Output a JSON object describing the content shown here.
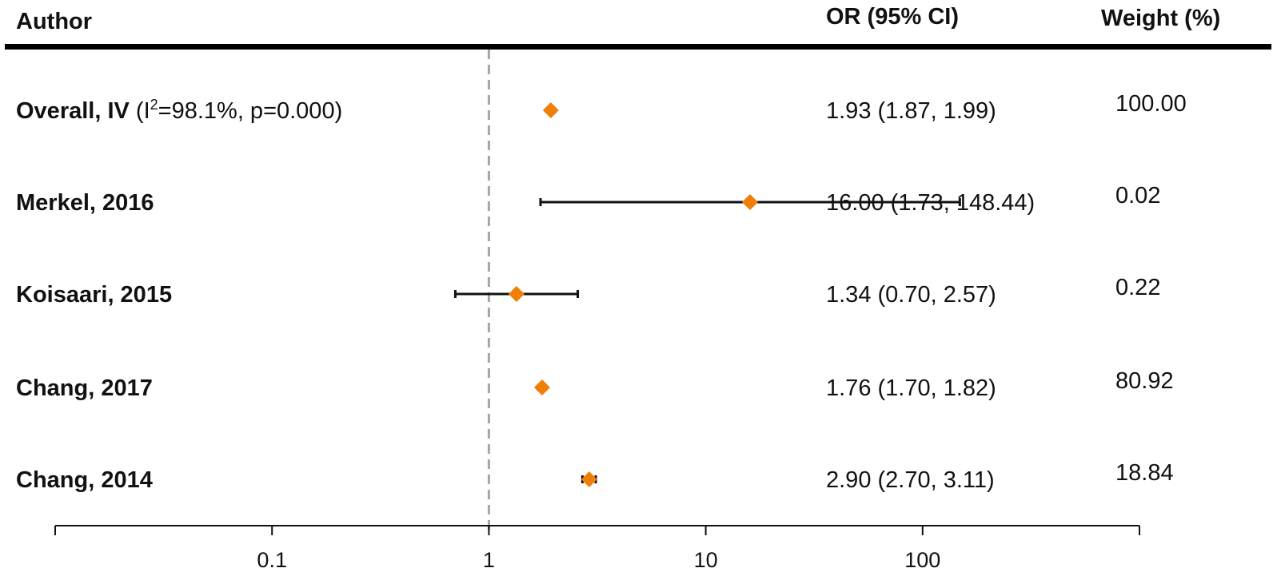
{
  "chart_data": {
    "type": "forest",
    "x_scale": "log10",
    "xlim": [
      0.01,
      1000
    ],
    "reference_line": 1,
    "x_ticks": [
      0.01,
      0.1,
      1,
      10,
      100,
      1000
    ],
    "x_tick_labels": [
      "",
      "0.1",
      "1",
      "10",
      "100",
      ""
    ],
    "columns": {
      "author": "Author",
      "or": "OR (95% CI)",
      "weight": "Weight (%)"
    },
    "marker_color": "#f07f09",
    "rows": [
      {
        "label_bold": "Overall, IV",
        "label_plain_pre": " (I",
        "label_sup": "2",
        "label_plain_post": "=98.1%, p=0.000)",
        "or": 1.93,
        "ci_low": 1.87,
        "ci_high": 1.99,
        "or_text": "1.93 (1.87, 1.99)",
        "weight": "100.00",
        "show_ci": false
      },
      {
        "label_bold": "Merkel, 2016",
        "label_plain_pre": "",
        "label_sup": "",
        "label_plain_post": "",
        "or": 16.0,
        "ci_low": 1.73,
        "ci_high": 148.44,
        "or_text": "16.00 (1.73, 148.44)",
        "weight": "0.02",
        "show_ci": true
      },
      {
        "label_bold": "Koisaari, 2015",
        "label_plain_pre": "",
        "label_sup": "",
        "label_plain_post": "",
        "or": 1.34,
        "ci_low": 0.7,
        "ci_high": 2.57,
        "or_text": "1.34 (0.70, 2.57)",
        "weight": "0.22",
        "show_ci": true
      },
      {
        "label_bold": "Chang, 2017",
        "label_plain_pre": "",
        "label_sup": "",
        "label_plain_post": "",
        "or": 1.76,
        "ci_low": 1.7,
        "ci_high": 1.82,
        "or_text": "1.76 (1.70, 1.82)",
        "weight": "80.92",
        "show_ci": true
      },
      {
        "label_bold": "Chang, 2014",
        "label_plain_pre": "",
        "label_sup": "",
        "label_plain_post": "",
        "or": 2.9,
        "ci_low": 2.7,
        "ci_high": 3.11,
        "or_text": "2.90 (2.70, 3.11)",
        "weight": "18.84",
        "show_ci": true
      }
    ]
  }
}
